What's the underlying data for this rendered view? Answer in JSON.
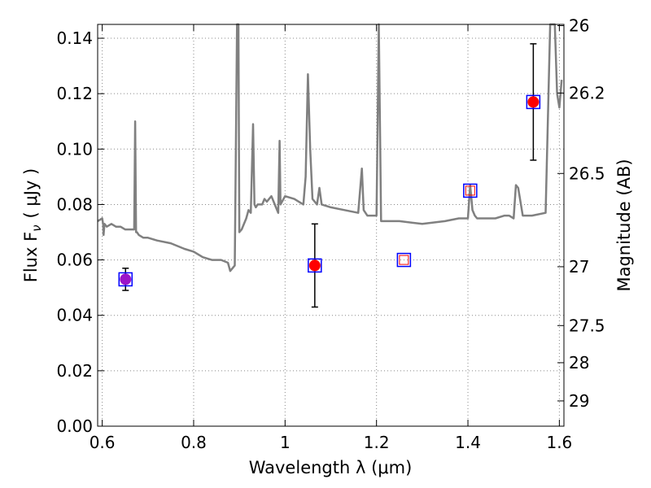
{
  "chart_data": {
    "type": "scatter",
    "xlabel": "Wavelength  λ (μm)",
    "ylabel": "Flux  F",
    "ylabel_sub": "ν",
    "ylabel_unit": "( μJy )",
    "ylabel_right": "Magnitude (AB)",
    "xlim": [
      0.59,
      1.61
    ],
    "ylim": [
      0.0,
      0.145
    ],
    "grid": true,
    "x_ticks": [
      0.6,
      0.8,
      1.0,
      1.2,
      1.4,
      1.6
    ],
    "x_tick_labels": [
      "0.6",
      "0.8",
      "1",
      "1.2",
      "1.4",
      "1.6"
    ],
    "y_ticks": [
      0.0,
      0.02,
      0.04,
      0.06,
      0.08,
      0.1,
      0.12,
      0.14
    ],
    "y_tick_labels": [
      "0.00",
      "0.02",
      "0.04",
      "0.06",
      "0.08",
      "0.10",
      "0.12",
      "0.14"
    ],
    "mag_ticks": [
      26,
      26.2,
      26.5,
      27,
      27.5,
      28,
      29
    ],
    "mag_tick_labels": [
      "26",
      "26.2",
      "26.5",
      "27",
      "27.5",
      "28",
      "29"
    ],
    "series": [
      {
        "type": "line",
        "color": "#808080",
        "x": [
          0.59,
          0.6,
          0.602,
          0.603,
          0.605,
          0.61,
          0.62,
          0.63,
          0.64,
          0.65,
          0.66,
          0.67,
          0.672,
          0.674,
          0.676,
          0.68,
          0.69,
          0.7,
          0.72,
          0.75,
          0.78,
          0.8,
          0.82,
          0.84,
          0.86,
          0.875,
          0.88,
          0.89,
          0.895,
          0.898,
          0.9,
          0.905,
          0.915,
          0.92,
          0.925,
          0.93,
          0.933,
          0.936,
          0.94,
          0.945,
          0.95,
          0.955,
          0.96,
          0.965,
          0.97,
          0.975,
          0.98,
          0.985,
          0.988,
          0.99,
          1.0,
          1.02,
          1.04,
          1.045,
          1.05,
          1.055,
          1.06,
          1.07,
          1.075,
          1.08,
          1.1,
          1.13,
          1.16,
          1.168,
          1.172,
          1.18,
          1.2,
          1.205,
          1.21,
          1.22,
          1.25,
          1.3,
          1.35,
          1.38,
          1.4,
          1.405,
          1.41,
          1.415,
          1.42,
          1.46,
          1.48,
          1.49,
          1.5,
          1.505,
          1.51,
          1.52,
          1.54,
          1.57,
          1.58,
          1.59,
          1.595,
          1.6,
          1.605
        ],
        "y": [
          0.074,
          0.075,
          0.073,
          0.069,
          0.073,
          0.072,
          0.073,
          0.072,
          0.072,
          0.071,
          0.071,
          0.071,
          0.11,
          0.07,
          0.07,
          0.069,
          0.068,
          0.068,
          0.067,
          0.066,
          0.064,
          0.063,
          0.061,
          0.06,
          0.06,
          0.059,
          0.056,
          0.058,
          0.145,
          0.145,
          0.07,
          0.071,
          0.075,
          0.078,
          0.077,
          0.109,
          0.08,
          0.079,
          0.08,
          0.08,
          0.08,
          0.082,
          0.081,
          0.082,
          0.083,
          0.081,
          0.079,
          0.077,
          0.103,
          0.08,
          0.083,
          0.082,
          0.08,
          0.09,
          0.127,
          0.1,
          0.082,
          0.08,
          0.086,
          0.08,
          0.079,
          0.078,
          0.077,
          0.093,
          0.078,
          0.076,
          0.076,
          0.145,
          0.074,
          0.074,
          0.074,
          0.073,
          0.074,
          0.075,
          0.075,
          0.087,
          0.078,
          0.076,
          0.075,
          0.075,
          0.076,
          0.076,
          0.075,
          0.087,
          0.086,
          0.076,
          0.076,
          0.077,
          0.145,
          0.145,
          0.12,
          0.115,
          0.125
        ]
      },
      {
        "type": "errorbar",
        "color": "#000000",
        "x": [
          0.651,
          1.065,
          1.543
        ],
        "y": [
          0.053,
          0.058,
          0.117
        ],
        "err_low": [
          0.004,
          0.015,
          0.021
        ],
        "err_high": [
          0.004,
          0.015,
          0.021
        ]
      },
      {
        "type": "filled-circle",
        "colors": [
          "#9b14c8",
          "#ff0000",
          "#ff0000"
        ],
        "x": [
          0.651,
          1.065,
          1.543
        ],
        "y": [
          0.053,
          0.058,
          0.117
        ]
      },
      {
        "type": "open-square",
        "edge_color": "#0000ff",
        "x": [
          0.651,
          1.065,
          1.26,
          1.405,
          1.543
        ],
        "y": [
          0.053,
          0.058,
          0.06,
          0.085,
          0.117
        ]
      },
      {
        "type": "small-open-square",
        "edge_color": "#ff0000",
        "x": [
          1.26,
          1.405
        ],
        "y": [
          0.06,
          0.085
        ]
      }
    ]
  }
}
